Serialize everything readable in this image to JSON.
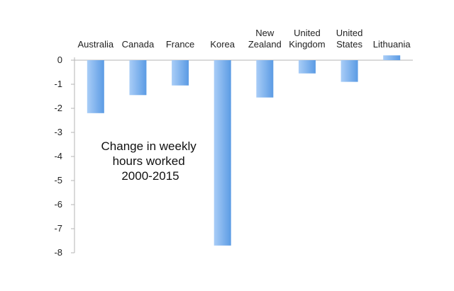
{
  "chart_data": {
    "type": "bar",
    "title": "",
    "xlabel": "",
    "ylabel": "",
    "categories": [
      "Australia",
      "Canada",
      "France",
      "Korea",
      "New Zealand",
      "United Kingdom",
      "United States",
      "Lithuania"
    ],
    "values": [
      -2.2,
      -1.45,
      -1.05,
      -7.7,
      -1.55,
      -0.55,
      -0.9,
      0.2
    ],
    "ylim": [
      -8,
      0
    ],
    "yticks": [
      0,
      -1,
      -2,
      -3,
      -4,
      -5,
      -6,
      -7,
      -8
    ],
    "annotation": "Change in weekly hours worked 2000-2015",
    "annotation_lines": [
      "Change in weekly",
      "hours worked",
      "2000-2015"
    ],
    "grid": false,
    "legend": "none",
    "colors": {
      "bar_light": "#a9cdf7",
      "bar_dark": "#5b9be4",
      "axis": "#b5b5b5"
    }
  }
}
